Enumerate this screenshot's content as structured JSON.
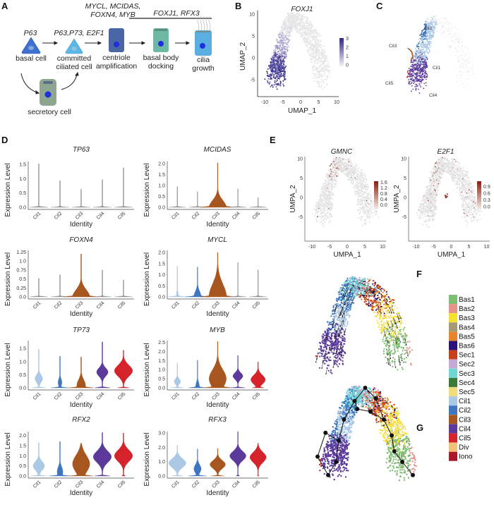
{
  "panel_labels": {
    "a": "A",
    "b": "B",
    "c": "C",
    "d": "D",
    "e": "E",
    "f": "F",
    "g": "G"
  },
  "panel_a": {
    "top_genes_line1": "MYCL, MCIDAS,",
    "top_genes_line2": "FOXN4, MYB",
    "bar_genes": "FOXJ1, RFX3",
    "basal_marker": "P63",
    "committed_markers": "P63,P73, E2F1",
    "stages": [
      {
        "line1": "basal cell",
        "line2": ""
      },
      {
        "line1": "committed",
        "line2": "ciliated cell"
      },
      {
        "line1": "centriole",
        "line2": "amplification"
      },
      {
        "line1": "basal body",
        "line2": "docking"
      },
      {
        "line1": "cilia",
        "line2": "growth"
      }
    ],
    "secretory": "secretory cell",
    "colors": {
      "basal": "#3f6fd3",
      "committed": "#5db7e6",
      "centriole": "#4b66a6",
      "docking": "#6db9a3",
      "cilia": "#5aaee2",
      "secretory": "#8ea68f",
      "nucleus": "#1f2fe0"
    }
  },
  "panel_b": {
    "title": "FOXJ1",
    "xlabel": "UMAP_1",
    "ylabel": "UMAP_2",
    "xticks": [
      "-10",
      "-5",
      "0",
      "5",
      "10"
    ],
    "yticks": [
      "10",
      "5",
      "0",
      "-5"
    ],
    "colorbar_ticks": [
      "3",
      "2",
      "1",
      "0"
    ],
    "colorbar_range": [
      0,
      3
    ],
    "color_low": "#efedf6",
    "color_high": "#2e2688"
  },
  "panel_c": {
    "cluster_labels": [
      "Cil2",
      "Cil3",
      "Cil1",
      "Cil5",
      "Cil4"
    ]
  },
  "panel_e": {
    "plots": [
      {
        "title": "GMNC",
        "xlabel": "UMPA_1",
        "ylabel": "UMPA_2",
        "xticks": [
          "-10",
          "-5",
          "0",
          "5",
          "10"
        ],
        "yticks": [
          "10",
          "5",
          "0",
          "-5"
        ],
        "colorbar_ticks": [
          "1.6",
          "1.2",
          "0.8",
          "0.4",
          "0.0"
        ],
        "colorbar_range": [
          0,
          1.7
        ]
      },
      {
        "title": "E2F1",
        "xlabel": "UMPA_1",
        "ylabel": "UMPA_2",
        "xticks": [
          "-10",
          "-5",
          "0",
          "5",
          "10"
        ],
        "yticks": [
          "10",
          "5",
          "0",
          "-5"
        ],
        "colorbar_ticks": [
          "0.9",
          "0.6",
          "0.3",
          "0.0"
        ],
        "colorbar_range": [
          0,
          1.0
        ]
      }
    ],
    "color_high": "#8a1c0c"
  },
  "legend": [
    {
      "label": "Bas1",
      "color": "#7cbf72"
    },
    {
      "label": "Bas2",
      "color": "#e8928c"
    },
    {
      "label": "Bas3",
      "color": "#f2e12e"
    },
    {
      "label": "Bas4",
      "color": "#a39a78"
    },
    {
      "label": "Bas5",
      "color": "#e8822e"
    },
    {
      "label": "Bas6",
      "color": "#2a1478"
    },
    {
      "label": "Sec1",
      "color": "#c7401c"
    },
    {
      "label": "Sec2",
      "color": "#c4a8d6"
    },
    {
      "label": "Sec3",
      "color": "#6fd7d2"
    },
    {
      "label": "Sec4",
      "color": "#3c7a3a"
    },
    {
      "label": "Sec5",
      "color": "#f0dc7a"
    },
    {
      "label": "Cil1",
      "color": "#abc8e4"
    },
    {
      "label": "Cil2",
      "color": "#3e76bf"
    },
    {
      "label": "Cil3",
      "color": "#a8561f"
    },
    {
      "label": "Cil4",
      "color": "#5b3a9c"
    },
    {
      "label": "Cil5",
      "color": "#d4232b"
    },
    {
      "label": "Div",
      "color": "#f1c27a"
    },
    {
      "label": "Iono",
      "color": "#a8192a"
    }
  ],
  "chart_data": [
    {
      "type": "violin",
      "title": "TP63",
      "xlabel": "Identity",
      "ylabel": "Expression Level",
      "categories": [
        "Cil1",
        "Cil2",
        "Cil3",
        "Cil4",
        "Cil5"
      ],
      "ylim": [
        0,
        1.6
      ],
      "yticks": [
        "0.0",
        "0.5",
        "1.0",
        "1.5"
      ],
      "max": [
        1.52,
        0.93,
        0.63,
        0.97,
        1.38
      ],
      "mode": [
        0,
        0,
        0,
        0,
        0
      ],
      "body": [
        0,
        0,
        0,
        0,
        0
      ],
      "zero": [
        0.95,
        0.95,
        0.95,
        0.95,
        0.95
      ],
      "sd": [
        0.2,
        0.2,
        0.2,
        0.2,
        0.2
      ]
    },
    {
      "type": "violin",
      "title": "MCIDAS",
      "xlabel": "Identity",
      "ylabel": "Expression Level",
      "categories": [
        "Cil1",
        "Cil2",
        "Cil3",
        "Cil4",
        "Cil5"
      ],
      "ylim": [
        0,
        2.1
      ],
      "yticks": [
        "0.0",
        "0.5",
        "1.0",
        "1.5",
        "2.0"
      ],
      "max": [
        0.95,
        0.72,
        2.03,
        0.85,
        0.45
      ],
      "mode": [
        0,
        0,
        0,
        0,
        0
      ],
      "body": [
        0,
        0,
        0.95,
        0,
        0
      ],
      "zero": [
        0.95,
        0.95,
        0.95,
        0.95,
        0.95
      ],
      "sd": [
        0.2,
        0.2,
        0.45,
        0.2,
        0.2
      ]
    },
    {
      "type": "violin",
      "title": "FOXN4",
      "xlabel": "Identity",
      "ylabel": "Expression Level",
      "categories": [
        "Cil1",
        "Cil2",
        "Cil3",
        "Cil4",
        "Cil5"
      ],
      "ylim": [
        0,
        1.3
      ],
      "yticks": [
        "0.0",
        "0.25",
        "0.5",
        "0.75",
        "1.0",
        "1.25"
      ],
      "max": [
        0.52,
        0.62,
        1.2,
        0.75,
        0.47
      ],
      "mode": [
        0,
        0,
        0,
        0,
        0
      ],
      "body": [
        0,
        0,
        0.9,
        0,
        0
      ],
      "zero": [
        0.95,
        0.95,
        0.95,
        0.95,
        0.95
      ],
      "sd": [
        0.2,
        0.2,
        0.28,
        0.2,
        0.2
      ]
    },
    {
      "type": "violin",
      "title": "MYCL",
      "xlabel": "Identity",
      "ylabel": "Expression Level",
      "categories": [
        "Cil1",
        "Cil2",
        "Cil3",
        "Cil4",
        "Cil5"
      ],
      "ylim": [
        0,
        2.1
      ],
      "yticks": [
        "0.0",
        "0.5",
        "1.0",
        "1.5",
        "2.0"
      ],
      "max": [
        1.38,
        1.35,
        2.0,
        1.55,
        1.22
      ],
      "mode": [
        0,
        0,
        0,
        0,
        0
      ],
      "body": [
        0.12,
        0.4,
        0.97,
        0,
        0
      ],
      "zero": [
        0.95,
        0.95,
        0.95,
        0.95,
        0.95
      ],
      "sd": [
        0.3,
        0.35,
        0.8,
        0.2,
        0.2
      ]
    },
    {
      "type": "violin",
      "title": "TP73",
      "xlabel": "Identity",
      "ylabel": "Expression Level",
      "categories": [
        "Cil1",
        "Cil2",
        "Cil3",
        "Cil4",
        "Cil5"
      ],
      "ylim": [
        0,
        1.8
      ],
      "yticks": [
        "0.0",
        "0.5",
        "1.0",
        "1.5"
      ],
      "max": [
        1.47,
        1.2,
        1.17,
        1.75,
        1.43
      ],
      "mode": [
        0.35,
        0.2,
        0.1,
        0.6,
        0.65
      ],
      "body": [
        0.4,
        0.2,
        0.45,
        0.6,
        0.95
      ],
      "zero": [
        0.7,
        0.85,
        0.9,
        0.8,
        0.6
      ],
      "sd": [
        0.2,
        0.2,
        0.3,
        0.22,
        0.3
      ]
    },
    {
      "type": "violin",
      "title": "MYB",
      "xlabel": "Identity",
      "ylabel": "Expression Level",
      "categories": [
        "Cil1",
        "Cil2",
        "Cil3",
        "Cil4",
        "Cil5"
      ],
      "ylim": [
        0,
        2.6
      ],
      "yticks": [
        "0.0",
        "0.5",
        "1.0",
        "1.5",
        "2.0",
        "2.5"
      ],
      "max": [
        1.37,
        1.52,
        2.55,
        1.78,
        1.42
      ],
      "mode": [
        0.35,
        0.1,
        0.5,
        0.65,
        0.45
      ],
      "body": [
        0.35,
        0.2,
        0.95,
        0.55,
        0.8
      ],
      "zero": [
        0.7,
        0.8,
        0.95,
        0.8,
        0.5
      ],
      "sd": [
        0.2,
        0.3,
        0.7,
        0.25,
        0.35
      ]
    },
    {
      "type": "violin",
      "title": "RFX2",
      "xlabel": "Identity",
      "ylabel": "Expression Level",
      "categories": [
        "Cil1",
        "Cil2",
        "Cil3",
        "Cil4",
        "Cil5"
      ],
      "ylim": [
        0,
        2.2
      ],
      "yticks": [
        "0.0",
        "0.5",
        "1.0",
        "1.5",
        "2.0"
      ],
      "max": [
        1.65,
        1.7,
        1.62,
        2.15,
        2.12
      ],
      "mode": [
        0.5,
        0.2,
        0.6,
        0.95,
        1.0
      ],
      "body": [
        0.6,
        0.3,
        0.9,
        0.95,
        0.95
      ],
      "zero": [
        0.8,
        0.9,
        0.95,
        0.8,
        0.2
      ],
      "sd": [
        0.3,
        0.35,
        0.6,
        0.4,
        0.4
      ]
    },
    {
      "type": "violin",
      "title": "RFX3",
      "xlabel": "Identity",
      "ylabel": "Expression Level",
      "categories": [
        "Cil1",
        "Cil2",
        "Cil3",
        "Cil4",
        "Cil5"
      ],
      "ylim": [
        0,
        3.1
      ],
      "yticks": [
        "0.0",
        "1.0",
        "2.0",
        "3.0"
      ],
      "max": [
        2.15,
        1.88,
        1.93,
        3.1,
        2.3
      ],
      "mode": [
        0.9,
        0.5,
        0.8,
        1.4,
        1.3
      ],
      "body": [
        0.95,
        0.4,
        0.85,
        0.9,
        0.9
      ],
      "zero": [
        0.6,
        0.9,
        0.7,
        0.2,
        0.1
      ],
      "sd": [
        0.45,
        0.4,
        0.4,
        0.45,
        0.5
      ]
    }
  ],
  "violin_colors": {
    "Cil1": "#abc8e4",
    "Cil2": "#3e76bf",
    "Cil3": "#a8561f",
    "Cil4": "#5b3a9c",
    "Cil5": "#d4232b",
    "low": "#8c8c8c"
  }
}
